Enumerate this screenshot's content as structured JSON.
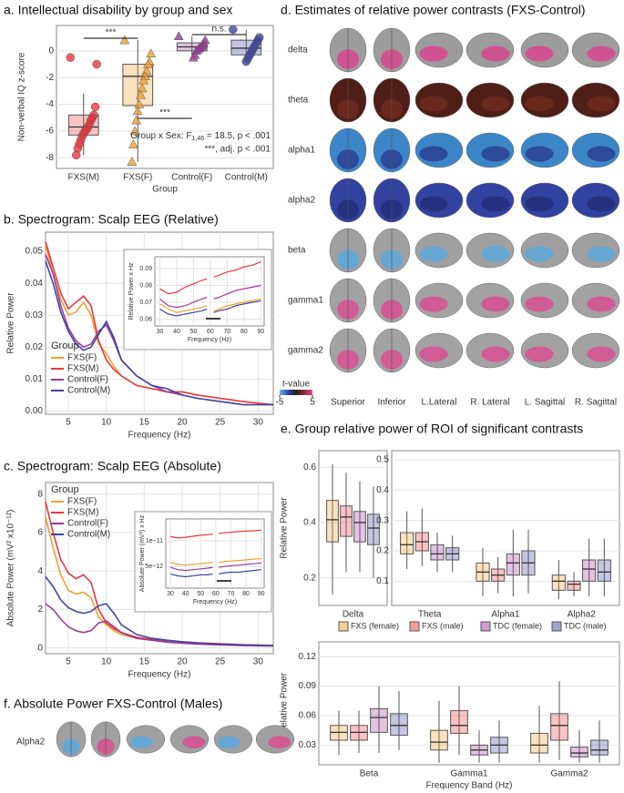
{
  "chart_data": [
    {
      "type": "box",
      "title": "a. Intellectual disability by group and sex",
      "xlabel": "Group",
      "ylabel": "Non-verbal IQ z-score",
      "categories": [
        "FXS(M)",
        "FXS(F)",
        "Control(F)",
        "Control(M)"
      ],
      "colors": [
        "#e8383d",
        "#f0a030",
        "#9b3a9b",
        "#3f47a0"
      ],
      "markers": [
        "circle",
        "triangle",
        "triangle",
        "circle"
      ],
      "boxes": [
        {
          "low": -7.8,
          "q1": -6.3,
          "median": -5.7,
          "q3": -4.8,
          "high": -3.2
        },
        {
          "low": -8.3,
          "q1": -4.1,
          "median": -1.9,
          "q3": -1.0,
          "high": 0.8
        },
        {
          "low": -0.5,
          "q1": 0.0,
          "median": 0.3,
          "q3": 0.6,
          "high": 1.1
        },
        {
          "low": -0.8,
          "q1": -0.3,
          "median": 0.2,
          "q3": 0.8,
          "high": 1.6
        }
      ],
      "points": [
        [
          -0.5,
          -1.0,
          -4.2,
          -4.8,
          -5.0,
          -5.2,
          -5.5,
          -5.7,
          -5.9,
          -6.0,
          -6.2,
          -6.4,
          -6.7,
          -7.0,
          -7.3,
          -7.8
        ],
        [
          0.8,
          -0.2,
          -0.8,
          -1.0,
          -1.5,
          -1.9,
          -2.2,
          -2.8,
          -3.3,
          -4.0,
          -4.5,
          -5.2,
          -6.0,
          -7.0,
          -8.3
        ],
        [
          1.1,
          0.8,
          0.6,
          0.4,
          0.3,
          0.2,
          0.1,
          0.0,
          -0.3,
          -0.5
        ],
        [
          1.6,
          1.0,
          0.8,
          0.6,
          0.4,
          0.2,
          0.0,
          -0.2,
          -0.4,
          -0.6,
          -0.8
        ]
      ],
      "annotations": [
        "***",
        "n.s.",
        "***"
      ],
      "stats_text": {
        "pre": "Group x Sex: F",
        "sub": "1,46",
        "post": " = 18.5, p < .001"
      },
      "stats_note": "***, adj. p < .001",
      "ylim": [
        -8.8,
        1.9
      ],
      "yticks": [
        -8,
        -6,
        -4,
        -2,
        0
      ],
      "grid": true
    },
    {
      "type": "line",
      "title": "b. Spectrogram: Scalp EEG (Relative)",
      "xlabel": "Frequency (Hz)",
      "ylabel": "Relative Power",
      "legend_title": "Group",
      "legend_position": "lower left",
      "x": [
        2,
        3,
        4,
        5,
        6,
        7,
        8,
        9,
        10,
        11,
        12,
        14,
        16,
        18,
        20,
        22,
        25,
        28,
        32
      ],
      "series": [
        {
          "name": "FXS(F)",
          "color": "#f0a030",
          "values": [
            0.052,
            0.043,
            0.035,
            0.03,
            0.031,
            0.034,
            0.03,
            0.021,
            0.018,
            0.014,
            0.011,
            0.008,
            0.007,
            0.006,
            0.006,
            0.005,
            0.004,
            0.003,
            0.002
          ]
        },
        {
          "name": "FXS(M)",
          "color": "#e8383d",
          "values": [
            0.053,
            0.045,
            0.037,
            0.032,
            0.034,
            0.036,
            0.033,
            0.022,
            0.016,
            0.013,
            0.011,
            0.008,
            0.007,
            0.006,
            0.006,
            0.005,
            0.004,
            0.003,
            0.002
          ]
        },
        {
          "name": "Control(F)",
          "color": "#9b3a9b",
          "values": [
            0.049,
            0.043,
            0.033,
            0.026,
            0.022,
            0.02,
            0.021,
            0.025,
            0.027,
            0.022,
            0.016,
            0.011,
            0.008,
            0.006,
            0.005,
            0.004,
            0.003,
            0.002,
            0.002
          ]
        },
        {
          "name": "Control(M)",
          "color": "#3f47a0",
          "values": [
            0.047,
            0.04,
            0.031,
            0.025,
            0.021,
            0.019,
            0.02,
            0.024,
            0.028,
            0.023,
            0.016,
            0.011,
            0.008,
            0.007,
            0.005,
            0.004,
            0.003,
            0.002,
            0.002
          ]
        }
      ],
      "xlim": [
        2,
        32
      ],
      "xticks": [
        5,
        10,
        15,
        20,
        25,
        30
      ],
      "ylim": [
        -0.001,
        0.056
      ],
      "yticks": [
        {
          "value": 0,
          "label": "0.00"
        },
        0.01,
        0.02,
        0.03,
        0.04,
        0.05
      ],
      "grid": true
    },
    {
      "type": "line",
      "xlabel": "Frequency (Hz)",
      "ylabel": "Relative Power x Hz",
      "x": [
        30,
        35,
        40,
        45,
        50,
        55,
        58,
        60,
        62,
        65,
        70,
        75,
        80,
        85,
        90
      ],
      "series": [
        {
          "color": "#e8383d",
          "values": [
            0.078,
            0.075,
            0.076,
            0.079,
            0.081,
            0.083,
            0.084,
            null,
            0.085,
            0.086,
            0.088,
            0.089,
            0.091,
            0.092,
            0.094
          ]
        },
        {
          "color": "#f0a030",
          "values": [
            0.069,
            0.066,
            0.064,
            0.065,
            0.066,
            0.067,
            0.068,
            null,
            0.065,
            0.066,
            0.068,
            0.069,
            0.07,
            0.071,
            0.072
          ]
        },
        {
          "color": "#9b3a9b",
          "values": [
            0.072,
            0.068,
            0.067,
            0.068,
            0.07,
            0.072,
            0.073,
            null,
            0.072,
            0.073,
            0.075,
            0.077,
            0.078,
            0.079,
            0.08
          ]
        },
        {
          "color": "#3f47a0",
          "values": [
            0.066,
            0.063,
            0.062,
            0.063,
            0.064,
            0.065,
            0.066,
            null,
            0.064,
            0.065,
            0.066,
            0.068,
            0.069,
            0.07,
            0.071
          ]
        }
      ],
      "xlim": [
        27,
        92
      ],
      "xticks": [
        30,
        40,
        50,
        60,
        70,
        80,
        90
      ],
      "ylim": [
        0.056,
        0.097
      ],
      "yticks": [
        0.06,
        0.07,
        0.08,
        0.09
      ],
      "grid": true
    },
    {
      "type": "line",
      "title": "c. Spectrogram: Scalp EEG (Absolute)",
      "xlabel": "Frequency (Hz)",
      "ylabel": "Absolute Power (mV² x10⁻¹²)",
      "legend_title": "Group",
      "legend_position": "upper left",
      "x": [
        2,
        3,
        4,
        5,
        6,
        7,
        8,
        9,
        10,
        11,
        12,
        14,
        16,
        18,
        20,
        22,
        25,
        28,
        32
      ],
      "series": [
        {
          "name": "FXS(F)",
          "color": "#f0a030",
          "values": [
            6.8,
            5.2,
            3.8,
            3.0,
            2.8,
            2.9,
            2.6,
            1.6,
            1.2,
            0.9,
            0.7,
            0.5,
            0.4,
            0.35,
            0.3,
            0.25,
            0.2,
            0.15,
            0.12
          ]
        },
        {
          "name": "FXS(M)",
          "color": "#e8383d",
          "values": [
            7.6,
            6.0,
            4.6,
            3.9,
            3.6,
            3.8,
            3.4,
            2.0,
            1.3,
            1.0,
            0.8,
            0.55,
            0.45,
            0.38,
            0.32,
            0.27,
            0.22,
            0.17,
            0.13
          ]
        },
        {
          "name": "Control(F)",
          "color": "#9b3a9b",
          "values": [
            2.3,
            2.0,
            1.5,
            1.1,
            0.9,
            0.8,
            0.9,
            1.3,
            1.4,
            1.1,
            0.8,
            0.5,
            0.4,
            0.3,
            0.25,
            0.2,
            0.16,
            0.12,
            0.1
          ]
        },
        {
          "name": "Control(M)",
          "color": "#3f47a0",
          "values": [
            3.7,
            3.2,
            2.5,
            2.1,
            1.9,
            1.8,
            1.9,
            2.2,
            2.3,
            1.8,
            1.2,
            0.7,
            0.5,
            0.4,
            0.32,
            0.26,
            0.2,
            0.15,
            0.12
          ]
        }
      ],
      "xlim": [
        2,
        32
      ],
      "xticks": [
        5,
        10,
        15,
        20,
        25,
        30
      ],
      "ylim": [
        -0.3,
        8.6
      ],
      "yticks": [
        0,
        2,
        4,
        6,
        8
      ],
      "grid": true
    },
    {
      "type": "line",
      "xlabel": "Frequency (Hz)",
      "ylabel": "Absolute Power (mV²) x Hz",
      "log_y": true,
      "x": [
        30,
        35,
        40,
        45,
        50,
        55,
        58,
        60,
        62,
        65,
        70,
        75,
        80,
        85,
        90
      ],
      "series": [
        {
          "color": "#e8383d",
          "values": [
            1.12e-11,
            1.08e-11,
            1.1e-11,
            1.13e-11,
            1.16e-11,
            1.18e-11,
            1.2e-11,
            null,
            1.22e-11,
            1.24e-11,
            1.26e-11,
            1.28e-11,
            1.3e-11,
            1.31e-11,
            1.33e-11
          ]
        },
        {
          "color": "#f0a030",
          "values": [
            5.6e-12,
            5.3e-12,
            5.2e-12,
            5.3e-12,
            5.4e-12,
            5.5e-12,
            5.6e-12,
            null,
            5.6e-12,
            5.7e-12,
            5.8e-12,
            5.9e-12,
            6e-12,
            6.1e-12,
            6.2e-12
          ]
        },
        {
          "color": "#9b3a9b",
          "values": [
            4.9e-12,
            4.6e-12,
            4.5e-12,
            4.6e-12,
            4.7e-12,
            4.8e-12,
            4.9e-12,
            null,
            4.9e-12,
            5e-12,
            5.1e-12,
            5.2e-12,
            5.3e-12,
            5.4e-12,
            5.5e-12
          ]
        },
        {
          "color": "#3f47a0",
          "values": [
            4.1e-12,
            3.9e-12,
            3.8e-12,
            3.9e-12,
            4e-12,
            4e-12,
            4.1e-12,
            null,
            4.1e-12,
            4.2e-12,
            4.3e-12,
            4.3e-12,
            4.4e-12,
            4.5e-12,
            4.6e-12
          ]
        }
      ],
      "xlim": [
        27,
        92
      ],
      "xticks": [
        30,
        40,
        50,
        60,
        70,
        80,
        90
      ],
      "ylim": [
        2.8e-12,
        1.8e-11
      ],
      "yticks": [
        {
          "value": 5e-12,
          "label": "5e−12"
        },
        {
          "value": 1e-11,
          "label": "1e−11"
        }
      ],
      "grid": true
    },
    {
      "type": "box",
      "title": "e. Group relative power of ROI of significant contrasts",
      "ylabel": "Relative Power",
      "legend_position": "bottom",
      "categories": [
        "Delta"
      ],
      "series": [
        {
          "name": "FXS (female)",
          "color": "#f0a030",
          "boxes": [
            {
              "low": 0.14,
              "q1": 0.33,
              "median": 0.41,
              "q3": 0.48,
              "high": 0.61
            }
          ]
        },
        {
          "name": "FXS (male)",
          "color": "#e8383d",
          "boxes": [
            {
              "low": 0.22,
              "q1": 0.35,
              "median": 0.42,
              "q3": 0.46,
              "high": 0.58
            }
          ]
        },
        {
          "name": "TDC (female)",
          "color": "#9b3a9b",
          "boxes": [
            {
              "low": 0.22,
              "q1": 0.33,
              "median": 0.4,
              "q3": 0.44,
              "high": 0.55
            }
          ]
        },
        {
          "name": "TDC (male)",
          "color": "#3f47a0",
          "boxes": [
            {
              "low": 0.2,
              "q1": 0.32,
              "median": 0.38,
              "q3": 0.43,
              "high": 0.53
            }
          ]
        }
      ],
      "ylim": [
        0.1,
        0.66
      ],
      "yticks": [
        0.2,
        0.4,
        0.6
      ],
      "grid": true
    },
    {
      "type": "box",
      "categories": [
        "Theta",
        "Alpha1",
        "Alpha2"
      ],
      "series": [
        {
          "color": "#f0a030",
          "boxes": [
            {
              "low": 0.14,
              "q1": 0.19,
              "median": 0.22,
              "q3": 0.26,
              "high": 0.33
            },
            {
              "low": 0.05,
              "q1": 0.1,
              "median": 0.13,
              "q3": 0.16,
              "high": 0.21
            },
            {
              "low": 0.04,
              "q1": 0.07,
              "median": 0.1,
              "q3": 0.12,
              "high": 0.17
            }
          ]
        },
        {
          "color": "#e8383d",
          "boxes": [
            {
              "low": 0.15,
              "q1": 0.2,
              "median": 0.23,
              "q3": 0.26,
              "high": 0.34
            },
            {
              "low": 0.06,
              "q1": 0.1,
              "median": 0.12,
              "q3": 0.14,
              "high": 0.18
            },
            {
              "low": 0.05,
              "q1": 0.07,
              "median": 0.09,
              "q3": 0.1,
              "high": 0.13
            }
          ]
        },
        {
          "color": "#9b3a9b",
          "boxes": [
            {
              "low": 0.13,
              "q1": 0.17,
              "median": 0.19,
              "q3": 0.22,
              "high": 0.26
            },
            {
              "low": 0.05,
              "q1": 0.12,
              "median": 0.16,
              "q3": 0.19,
              "high": 0.27
            },
            {
              "low": 0.05,
              "q1": 0.1,
              "median": 0.14,
              "q3": 0.17,
              "high": 0.24
            }
          ]
        },
        {
          "color": "#3f47a0",
          "boxes": [
            {
              "low": 0.13,
              "q1": 0.17,
              "median": 0.19,
              "q3": 0.21,
              "high": 0.25
            },
            {
              "low": 0.06,
              "q1": 0.12,
              "median": 0.16,
              "q3": 0.2,
              "high": 0.27
            },
            {
              "low": 0.05,
              "q1": 0.1,
              "median": 0.13,
              "q3": 0.17,
              "high": 0.24
            }
          ]
        }
      ],
      "ylim": [
        0.02,
        0.53
      ],
      "yticks": [
        0.1,
        0.2,
        0.3,
        0.4,
        0.5
      ],
      "grid": true
    },
    {
      "type": "box",
      "xlabel": "Frequency Band (Hz)",
      "ylabel": "Relative Power",
      "categories": [
        "Beta",
        "Gamma1",
        "Gamma2"
      ],
      "series": [
        {
          "color": "#f0a030",
          "boxes": [
            {
              "low": 0.02,
              "q1": 0.035,
              "median": 0.043,
              "q3": 0.05,
              "high": 0.065
            },
            {
              "low": 0.012,
              "q1": 0.025,
              "median": 0.033,
              "q3": 0.045,
              "high": 0.075
            },
            {
              "low": 0.012,
              "q1": 0.022,
              "median": 0.03,
              "q3": 0.042,
              "high": 0.07
            }
          ]
        },
        {
          "color": "#e8383d",
          "boxes": [
            {
              "low": 0.022,
              "q1": 0.035,
              "median": 0.043,
              "q3": 0.05,
              "high": 0.065
            },
            {
              "low": 0.02,
              "q1": 0.042,
              "median": 0.05,
              "q3": 0.065,
              "high": 0.09
            },
            {
              "low": 0.015,
              "q1": 0.035,
              "median": 0.05,
              "q3": 0.062,
              "high": 0.095
            }
          ]
        },
        {
          "color": "#9b3a9b",
          "boxes": [
            {
              "low": 0.022,
              "q1": 0.043,
              "median": 0.058,
              "q3": 0.067,
              "high": 0.09
            },
            {
              "low": 0.012,
              "q1": 0.02,
              "median": 0.025,
              "q3": 0.03,
              "high": 0.045
            },
            {
              "low": 0.012,
              "q1": 0.018,
              "median": 0.022,
              "q3": 0.028,
              "high": 0.045
            }
          ]
        },
        {
          "color": "#3f47a0",
          "boxes": [
            {
              "low": 0.025,
              "q1": 0.04,
              "median": 0.05,
              "q3": 0.062,
              "high": 0.085
            },
            {
              "low": 0.012,
              "q1": 0.022,
              "median": 0.03,
              "q3": 0.038,
              "high": 0.055
            },
            {
              "low": 0.012,
              "q1": 0.02,
              "median": 0.025,
              "q3": 0.035,
              "high": 0.055
            }
          ]
        }
      ],
      "ylim": [
        0.01,
        0.135
      ],
      "yticks": [
        0.03,
        0.06,
        0.09,
        0.12
      ],
      "grid": true
    }
  ],
  "figure": {
    "panel_d": {
      "title": "d. Estimates of relative power contrasts (FXS-Control)",
      "rows": [
        "delta",
        "theta",
        "alpha1",
        "alpha2",
        "beta",
        "gamma1",
        "gamma2"
      ],
      "views": [
        "Superior",
        "Inferior",
        "L.Lateral",
        "R. Lateral",
        "L. Sagittal",
        "R. Sagittal"
      ],
      "colorbar": {
        "label": "t-value",
        "ticks": [
          -5,
          5
        ]
      }
    },
    "panel_f": {
      "title": "f. Absolute Power FXS-Control (Males)",
      "row": "Alpha2"
    }
  }
}
